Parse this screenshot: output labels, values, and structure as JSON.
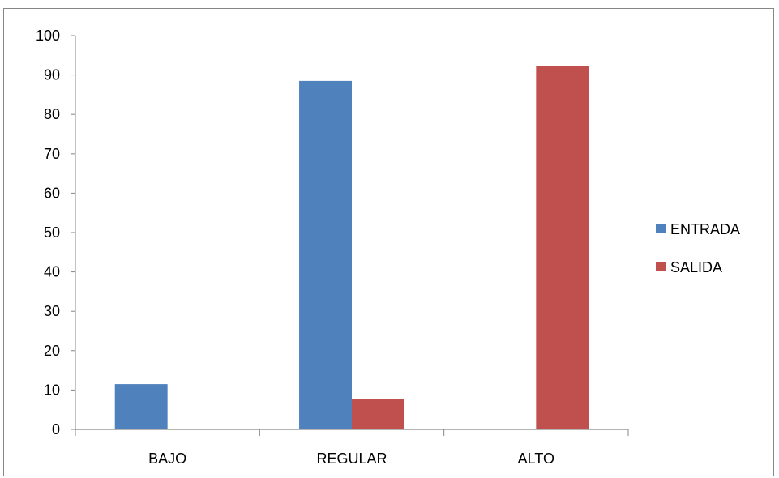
{
  "chart_data": {
    "type": "bar",
    "categories": [
      "BAJO",
      "REGULAR",
      "ALTO"
    ],
    "series": [
      {
        "name": "ENTRADA",
        "color": "#4F81BD",
        "values": [
          11.5,
          88.5,
          0
        ]
      },
      {
        "name": "SALIDA",
        "color": "#C0504D",
        "values": [
          0,
          7.7,
          92.3
        ]
      }
    ],
    "ylim": [
      0,
      100
    ],
    "yticks": [
      0,
      10,
      20,
      30,
      40,
      50,
      60,
      70,
      80,
      90,
      100
    ],
    "grid": true,
    "legend_position": "right",
    "title": "",
    "xlabel": "",
    "ylabel": ""
  }
}
